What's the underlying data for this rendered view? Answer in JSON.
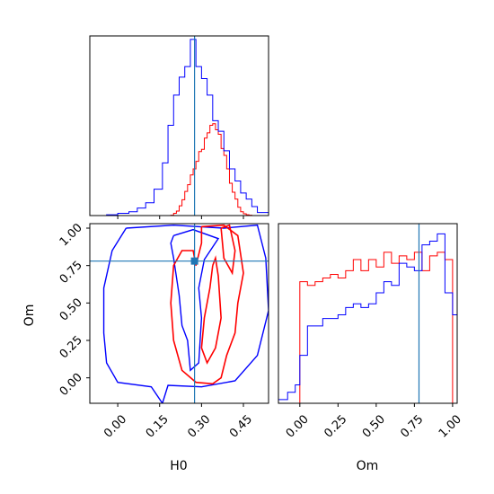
{
  "figure": {
    "truth": {
      "H0": 0.275,
      "Om": 0.78,
      "color": "#1f77b4"
    },
    "series_colors": {
      "red": "#ff0000",
      "blue": "#0000ff"
    }
  },
  "chart_data": [
    {
      "type": "histogram",
      "panel": "H0 marginal",
      "xlabel": "",
      "xlim": [
        -0.1,
        0.54
      ],
      "series": [
        {
          "color": "#ff0000",
          "bin_edges": [
            0.19,
            0.2,
            0.21,
            0.22,
            0.23,
            0.24,
            0.25,
            0.26,
            0.27,
            0.28,
            0.29,
            0.3,
            0.31,
            0.32,
            0.33,
            0.34,
            0.35,
            0.36,
            0.37,
            0.38,
            0.39,
            0.4,
            0.41,
            0.42,
            0.43,
            0.44,
            0.45,
            0.46,
            0.47,
            0.48
          ],
          "counts": [
            0.2,
            1.5,
            3.0,
            6.5,
            10.5,
            16.0,
            20.5,
            27.0,
            31.0,
            36.0,
            42.5,
            44.0,
            51.5,
            55.0,
            60.0,
            61.0,
            57.0,
            54.0,
            44.5,
            40.0,
            31.0,
            21.5,
            15.5,
            11.0,
            5.5,
            2.5,
            1.2,
            0.5,
            0.2
          ]
        },
        {
          "color": "#0000ff",
          "bin_edges": [
            -0.04,
            0.0,
            0.04,
            0.07,
            0.1,
            0.13,
            0.16,
            0.18,
            0.2,
            0.22,
            0.24,
            0.26,
            0.28,
            0.3,
            0.32,
            0.34,
            0.36,
            0.38,
            0.4,
            0.42,
            0.44,
            0.46,
            0.48,
            0.5,
            0.54
          ],
          "counts": [
            0.5,
            1.5,
            2.5,
            5.0,
            8.5,
            17.5,
            35.0,
            60.0,
            80.0,
            92.0,
            99.0,
            117.0,
            99.0,
            91.0,
            80.0,
            63.0,
            56.0,
            43.0,
            31.0,
            23.0,
            15.0,
            11.0,
            6.0,
            2.0
          ]
        }
      ]
    },
    {
      "type": "contour",
      "panel": "H0 vs Om",
      "xlabel": "H0",
      "ylabel": "Om",
      "xlim": [
        -0.1,
        0.54
      ],
      "ylim": [
        -0.17,
        1.03
      ],
      "xticks": [
        "0.00",
        "0.15",
        "0.30",
        "0.45"
      ],
      "yticks": [
        "0.00",
        "0.25",
        "0.50",
        "0.75",
        "1.00"
      ],
      "series": [
        {
          "color": "#0000ff",
          "level": "outer",
          "points": [
            [
              0.03,
              1.0
            ],
            [
              -0.02,
              0.85
            ],
            [
              -0.05,
              0.6
            ],
            [
              -0.05,
              0.3
            ],
            [
              -0.04,
              0.1
            ],
            [
              0.0,
              -0.03
            ],
            [
              0.12,
              -0.06
            ],
            [
              0.16,
              -0.17
            ],
            [
              0.18,
              -0.05
            ],
            [
              0.3,
              -0.06
            ],
            [
              0.42,
              -0.02
            ],
            [
              0.5,
              0.15
            ],
            [
              0.54,
              0.45
            ],
            [
              0.53,
              0.8
            ],
            [
              0.5,
              1.02
            ],
            [
              0.38,
              1.0
            ],
            [
              0.2,
              1.02
            ],
            [
              0.03,
              1.0
            ]
          ]
        },
        {
          "color": "#0000ff",
          "level": "inner",
          "points": [
            [
              0.2,
              0.95
            ],
            [
              0.27,
              0.99
            ],
            [
              0.36,
              0.93
            ],
            [
              0.31,
              0.79
            ],
            [
              0.29,
              0.6
            ],
            [
              0.3,
              0.4
            ],
            [
              0.29,
              0.1
            ],
            [
              0.26,
              0.05
            ],
            [
              0.25,
              0.25
            ],
            [
              0.23,
              0.35
            ],
            [
              0.22,
              0.55
            ],
            [
              0.2,
              0.8
            ],
            [
              0.19,
              0.9
            ],
            [
              0.2,
              0.95
            ]
          ]
        },
        {
          "color": "#ff0000",
          "level": "outer",
          "points": [
            [
              0.3,
              1.01
            ],
            [
              0.38,
              1.02
            ],
            [
              0.43,
              0.95
            ],
            [
              0.45,
              0.7
            ],
            [
              0.43,
              0.5
            ],
            [
              0.42,
              0.3
            ],
            [
              0.39,
              0.15
            ],
            [
              0.37,
              0.0
            ],
            [
              0.34,
              -0.04
            ],
            [
              0.28,
              -0.03
            ],
            [
              0.23,
              0.05
            ],
            [
              0.2,
              0.25
            ],
            [
              0.19,
              0.5
            ],
            [
              0.2,
              0.75
            ],
            [
              0.23,
              0.85
            ],
            [
              0.27,
              0.85
            ],
            [
              0.28,
              0.75
            ],
            [
              0.3,
              0.9
            ],
            [
              0.3,
              1.01
            ]
          ]
        },
        {
          "color": "#ff0000",
          "level": "inner",
          "points": [
            [
              0.34,
              0.75
            ],
            [
              0.35,
              0.8
            ],
            [
              0.36,
              0.68
            ],
            [
              0.37,
              0.4
            ],
            [
              0.35,
              0.2
            ],
            [
              0.32,
              0.1
            ],
            [
              0.3,
              0.2
            ],
            [
              0.31,
              0.4
            ],
            [
              0.33,
              0.6
            ],
            [
              0.34,
              0.75
            ]
          ]
        },
        {
          "color": "#ff0000",
          "level": "inner",
          "points": [
            [
              0.37,
              1.0
            ],
            [
              0.4,
              1.02
            ],
            [
              0.42,
              0.85
            ],
            [
              0.41,
              0.7
            ],
            [
              0.38,
              0.8
            ],
            [
              0.37,
              1.0
            ]
          ]
        }
      ]
    },
    {
      "type": "histogram",
      "panel": "Om marginal",
      "xlabel": "Om",
      "xlim": [
        -0.14,
        1.03
      ],
      "xticks": [
        "0.00",
        "0.25",
        "0.50",
        "0.75",
        "1.00"
      ],
      "series": [
        {
          "color": "#ff0000",
          "bin_edges": [
            0.0,
            0.05,
            0.1,
            0.15,
            0.2,
            0.25,
            0.3,
            0.35,
            0.4,
            0.45,
            0.5,
            0.55,
            0.6,
            0.65,
            0.7,
            0.75,
            0.8,
            0.85,
            0.9,
            0.95,
            1.0
          ],
          "counts": [
            33,
            32,
            33,
            34,
            35,
            34,
            36,
            39,
            36,
            39,
            37,
            41,
            38,
            40,
            39,
            41,
            36,
            40,
            41,
            39
          ]
        },
        {
          "color": "#0000ff",
          "bin_edges": [
            -0.14,
            -0.08,
            -0.03,
            0.0,
            0.05,
            0.1,
            0.15,
            0.2,
            0.25,
            0.3,
            0.35,
            0.4,
            0.45,
            0.5,
            0.55,
            0.6,
            0.65,
            0.7,
            0.75,
            0.8,
            0.85,
            0.9,
            0.95,
            1.0,
            1.03
          ],
          "counts": [
            1,
            3,
            5,
            13,
            21,
            21,
            23,
            23,
            24,
            26,
            27,
            26,
            27,
            30,
            33,
            32,
            38,
            37,
            36,
            43,
            44,
            46,
            30,
            24
          ]
        }
      ]
    }
  ]
}
